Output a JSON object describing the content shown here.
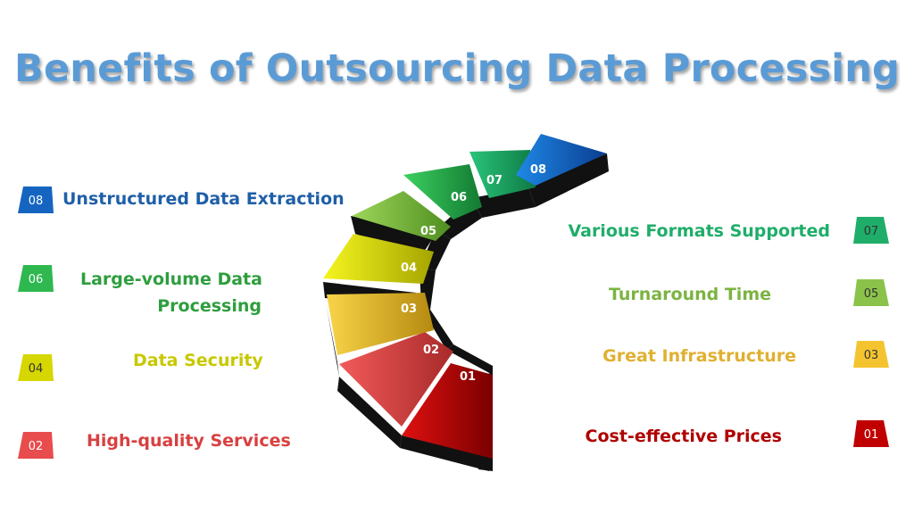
{
  "title": "Benefits of Outsourcing Data Processing",
  "colors": {
    "title": "#5b9bd5",
    "step01": "#c00000",
    "step02": "#e84c4c",
    "step03": "#f4c430",
    "step04": "#e6e600",
    "step05": "#8bc34a",
    "step06": "#2eb84f",
    "step07": "#1fae6a",
    "step08": "#1565c0"
  },
  "steps": [
    "01",
    "02",
    "03",
    "04",
    "05",
    "06",
    "07",
    "08"
  ],
  "left_items": [
    {
      "number": "08",
      "label": "Unstructured Data Extraction"
    },
    {
      "number": "06",
      "label_line1": "Large-volume Data",
      "label_line2": "Processing"
    },
    {
      "number": "04",
      "label": "Data Security"
    },
    {
      "number": "02",
      "label": "High-quality Services"
    }
  ],
  "right_items": [
    {
      "number": "07",
      "label": "Various Formats Supported"
    },
    {
      "number": "05",
      "label": "Turnaround Time"
    },
    {
      "number": "03",
      "label": "Great Infrastructure"
    },
    {
      "number": "01",
      "label": "Cost-effective Prices"
    }
  ]
}
